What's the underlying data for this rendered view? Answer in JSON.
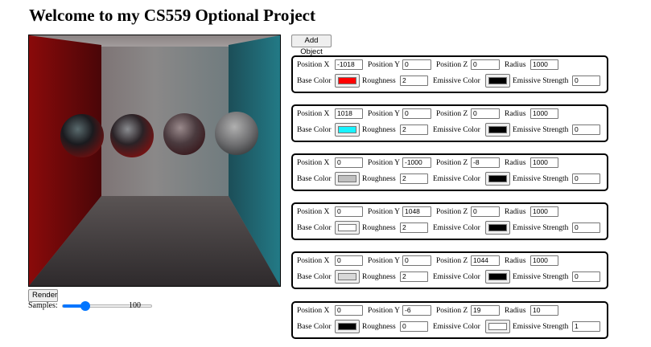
{
  "page": {
    "title": "Welcome to my CS559 Optional Project"
  },
  "controls": {
    "add_object_label": "Add Object",
    "render_label": "Render",
    "samples_label": "Samples:",
    "samples_value": "100",
    "samples_slider_fraction": 0.25
  },
  "field_labels": {
    "pos_x": "Position X",
    "pos_y": "Position Y",
    "pos_z": "Position Z",
    "radius": "Radius",
    "base_color": "Base Color",
    "roughness": "Roughness",
    "emissive_color": "Emissive Color",
    "emissive_strength": "Emissive Strength"
  },
  "objects": [
    {
      "x": "-1018",
      "y": "0",
      "z": "0",
      "radius": "1000",
      "base_color": "#ff0000",
      "roughness": "2",
      "emissive_color": "#000000",
      "emissive_strength": "0"
    },
    {
      "x": "1018",
      "y": "0",
      "z": "0",
      "radius": "1000",
      "base_color": "#17f3ff",
      "roughness": "2",
      "emissive_color": "#000000",
      "emissive_strength": "0"
    },
    {
      "x": "0",
      "y": "-1000",
      "z": "-8",
      "radius": "1000",
      "base_color": "#c0c0c0",
      "roughness": "2",
      "emissive_color": "#000000",
      "emissive_strength": "0"
    },
    {
      "x": "0",
      "y": "1048",
      "z": "0",
      "radius": "1000",
      "base_color": "#ffffff",
      "roughness": "2",
      "emissive_color": "#000000",
      "emissive_strength": "0"
    },
    {
      "x": "0",
      "y": "0",
      "z": "1044",
      "radius": "1000",
      "base_color": "#d8d8d8",
      "roughness": "2",
      "emissive_color": "#000000",
      "emissive_strength": "0"
    },
    {
      "x": "0",
      "y": "-6",
      "z": "19",
      "radius": "10",
      "base_color": "#000000",
      "roughness": "0",
      "emissive_color": "#ffffff",
      "emissive_strength": "1"
    }
  ]
}
